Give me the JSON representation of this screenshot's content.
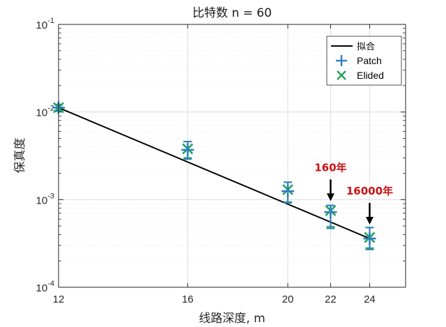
{
  "chart_data": {
    "type": "scatter",
    "title": "比特数 n = 60",
    "xlabel": "线路深度, m",
    "ylabel": "保真度",
    "yscale": "log",
    "xlim": [
      12,
      26
    ],
    "ylim": [
      0.0001,
      0.1
    ],
    "xticks": [
      12,
      16,
      20,
      22,
      24
    ],
    "xtick_labels": [
      "12",
      "16",
      "20",
      "22",
      "24"
    ],
    "yticks": [
      0.0001,
      0.001,
      0.01,
      0.1
    ],
    "ytick_labels": [
      {
        "base": "10",
        "exp": "-4"
      },
      {
        "base": "10",
        "exp": "-3"
      },
      {
        "base": "10",
        "exp": "-2"
      },
      {
        "base": "10",
        "exp": "-1"
      }
    ],
    "grid": true,
    "legend_position": "top-right",
    "series": [
      {
        "name": "拟合",
        "kind": "line",
        "color": "#000000",
        "x": [
          12,
          24
        ],
        "y": [
          0.0112,
          0.00036
        ]
      },
      {
        "name": "Patch",
        "kind": "errorbar",
        "marker": "plus",
        "color": "#2e7ec2",
        "x": [
          12,
          16,
          20,
          22,
          24
        ],
        "y": [
          0.0112,
          0.0037,
          0.00125,
          0.00072,
          0.00036
        ],
        "yerr_low": [
          0.0102,
          0.0029,
          0.00092,
          0.00047,
          0.00027
        ],
        "yerr_high": [
          0.0122,
          0.0046,
          0.00158,
          0.00086,
          0.00048
        ]
      },
      {
        "name": "Elided",
        "kind": "errorbar",
        "marker": "x",
        "color": "#23a35a",
        "x": [
          12,
          16,
          20,
          22,
          24
        ],
        "y": [
          0.0112,
          0.0038,
          0.0013,
          0.00075,
          0.00037
        ],
        "yerr_low": [
          0.0104,
          0.003,
          0.00094,
          0.00049,
          0.00028
        ],
        "yerr_high": [
          0.0122,
          0.0046,
          0.00158,
          0.00086,
          0.00048
        ]
      }
    ],
    "annotations": [
      {
        "text": "160年",
        "x": 22,
        "y": 0.00098,
        "color": "#cc1111"
      },
      {
        "text": "16000年",
        "x": 24,
        "y": 0.00053,
        "color": "#cc1111"
      }
    ]
  }
}
